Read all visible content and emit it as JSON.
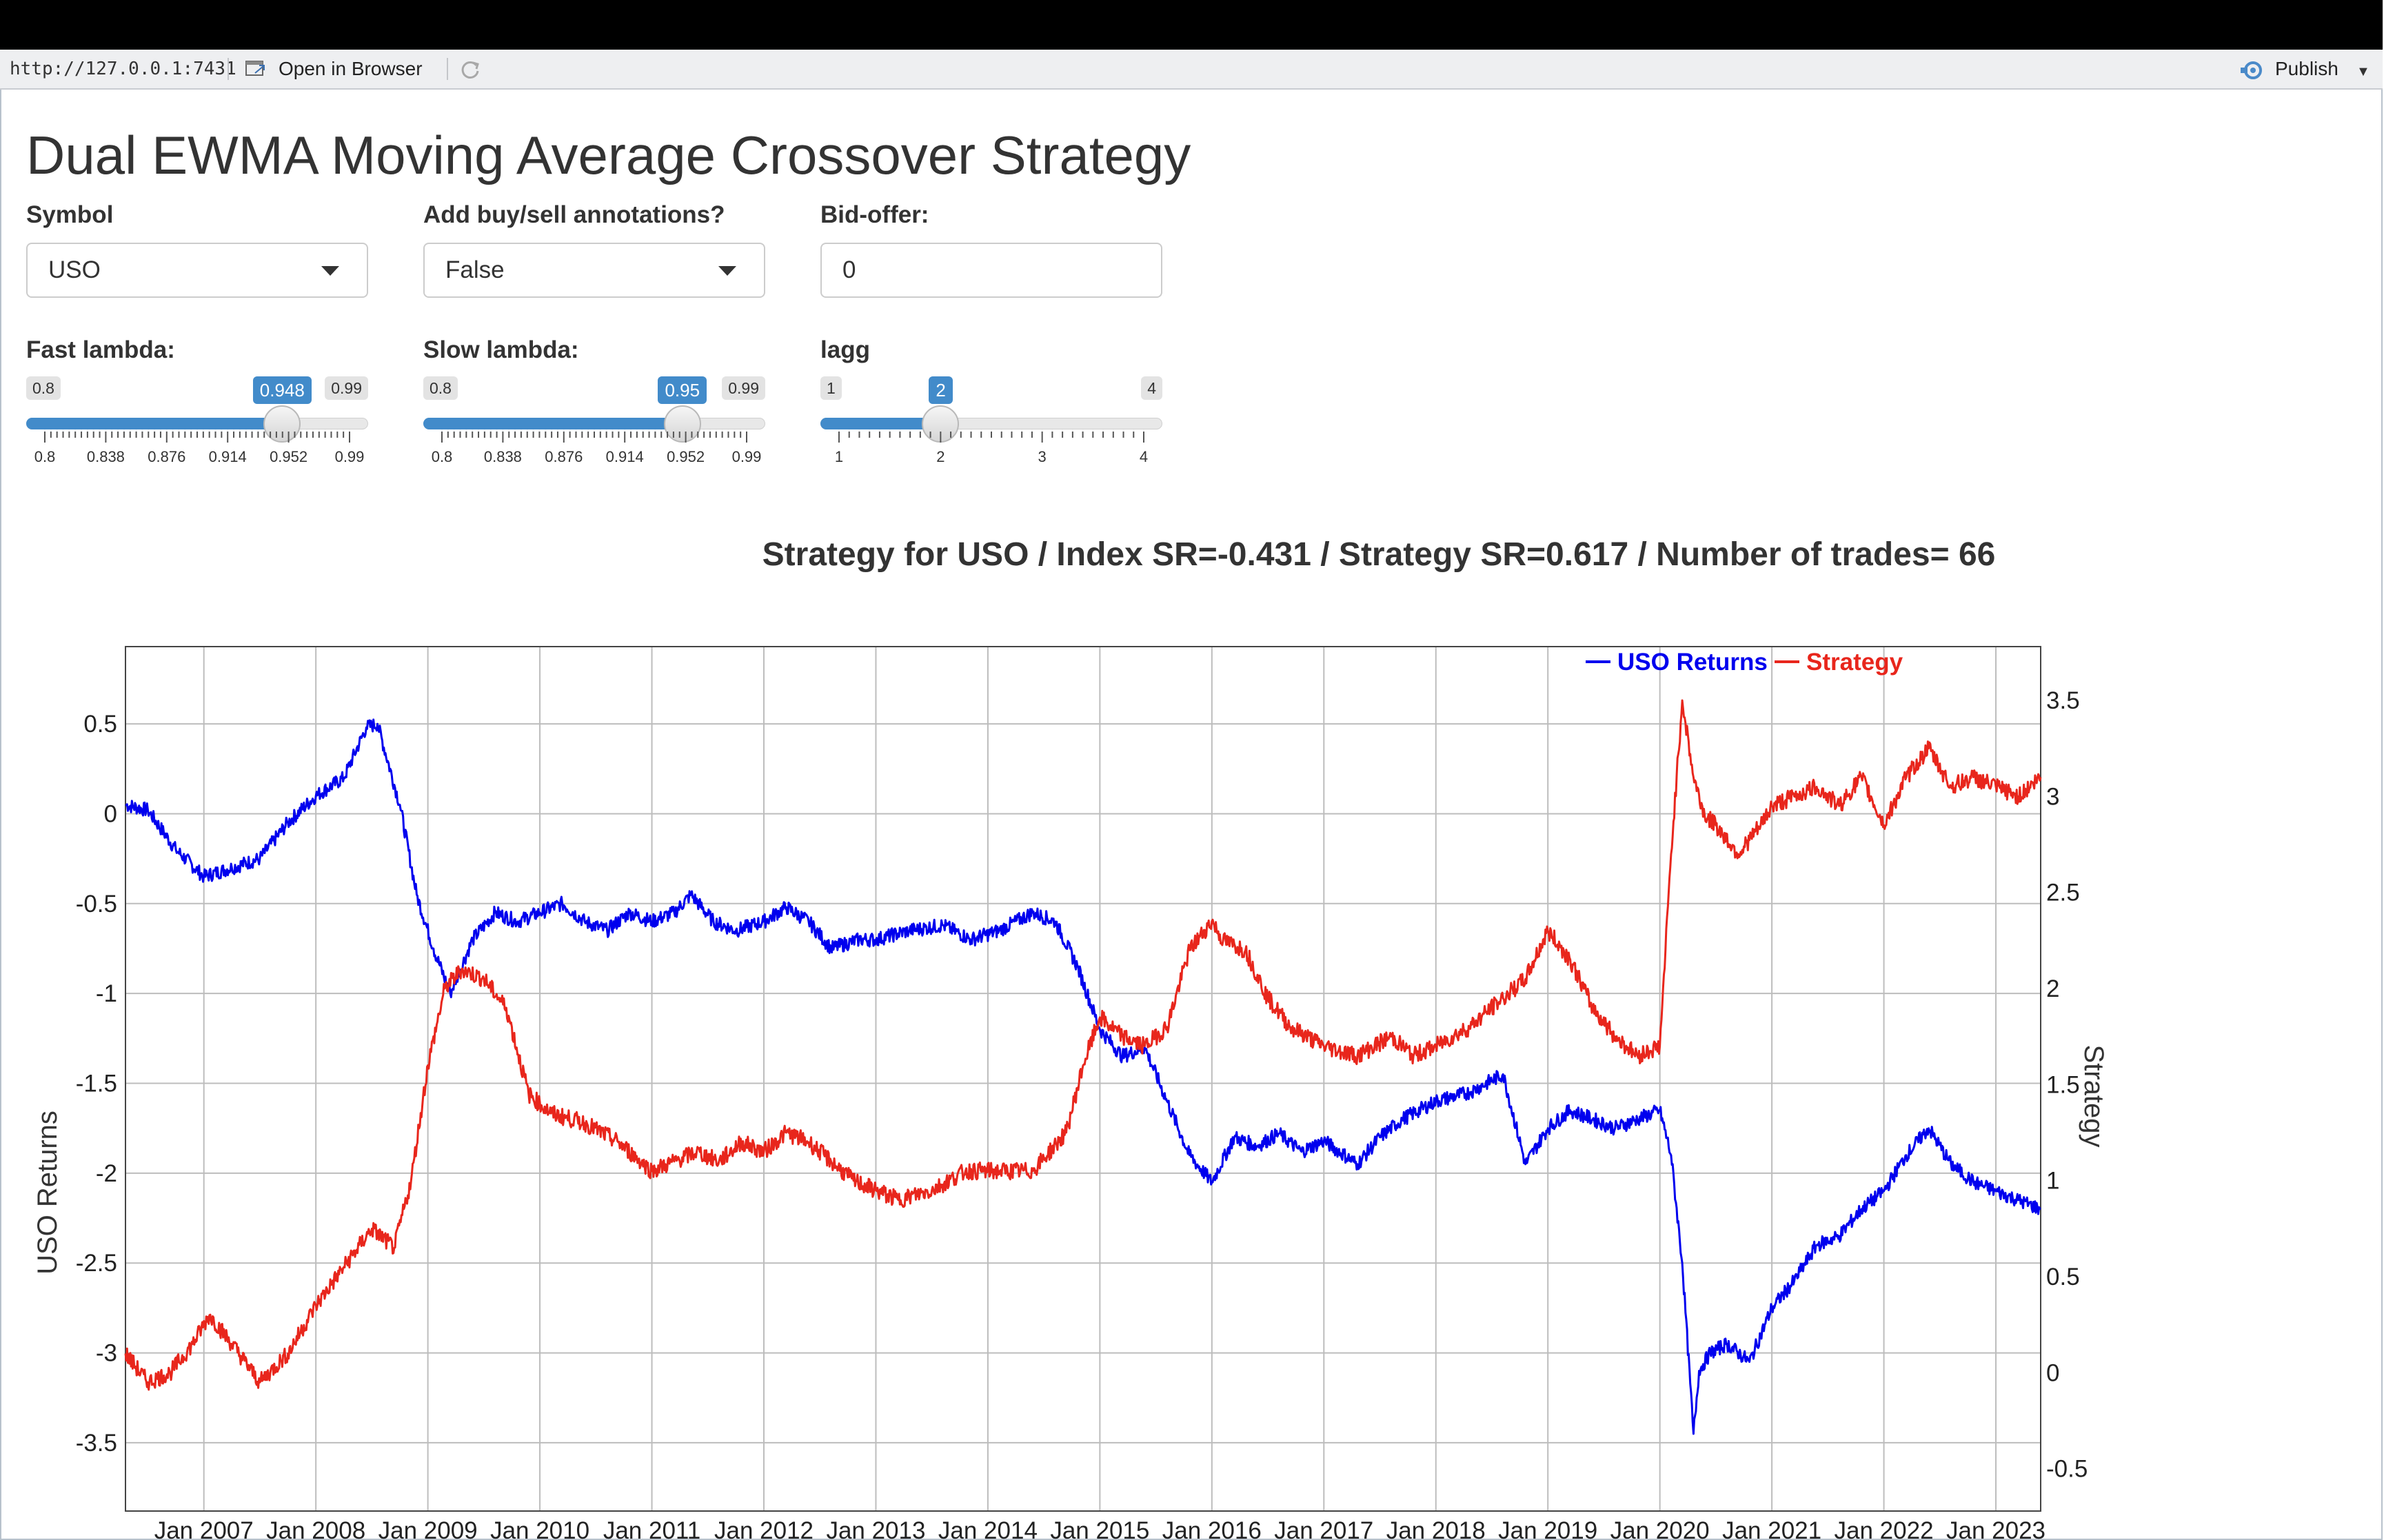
{
  "viewer": {
    "url": "http://127.0.0.1:7431",
    "open_in_browser": "Open in Browser",
    "publish": "Publish"
  },
  "app": {
    "title": "Dual EWMA Moving Average Crossover Strategy",
    "controls": {
      "symbol": {
        "label": "Symbol",
        "value": "USO"
      },
      "annotations": {
        "label": "Add buy/sell annotations?",
        "value": "False"
      },
      "bid_offer": {
        "label": "Bid-offer:",
        "value": "0"
      },
      "fast_lambda": {
        "label": "Fast lambda:",
        "min": "0.8",
        "max": "0.99",
        "value": 0.948,
        "value_label": "0.948",
        "ticks": [
          "0.8",
          "0.838",
          "0.876",
          "0.914",
          "0.952",
          "0.99"
        ]
      },
      "slow_lambda": {
        "label": "Slow lambda:",
        "min": "0.8",
        "max": "0.99",
        "value": 0.95,
        "value_label": "0.95",
        "ticks": [
          "0.8",
          "0.838",
          "0.876",
          "0.914",
          "0.952",
          "0.99"
        ]
      },
      "lagg": {
        "label": "lagg",
        "min": "1",
        "max": "4",
        "value": 2,
        "value_label": "2",
        "ticks": [
          "1",
          "2",
          "3",
          "4"
        ]
      }
    }
  },
  "chart_data": {
    "type": "line",
    "title": "Strategy for USO / Index SR=-0.431 / Strategy SR=0.617 / Number of trades= 66",
    "ylabel": "USO Returns",
    "y2label": "Strategy",
    "x_range": [
      2006.3,
      2023.4
    ],
    "x_ticks": [
      "Jan 2007",
      "Jan 2008",
      "Jan 2009",
      "Jan 2010",
      "Jan 2011",
      "Jan 2012",
      "Jan 2013",
      "Jan 2014",
      "Jan 2015",
      "Jan 2016",
      "Jan 2017",
      "Jan 2018",
      "Jan 2019",
      "Jan 2020",
      "Jan 2021",
      "Jan 2022",
      "Jan 2023"
    ],
    "y_range": [
      -3.88,
      0.93
    ],
    "y_ticks": [
      "0.5",
      "0",
      "-0.5",
      "-1",
      "-1.5",
      "-2",
      "-2.5",
      "-3",
      "-3.5"
    ],
    "y2_range": [
      -0.72,
      3.78
    ],
    "y2_ticks": [
      "3.5",
      "3",
      "2.5",
      "2",
      "1.5",
      "1",
      "0.5",
      "0",
      "-0.5"
    ],
    "grid": true,
    "legend_position": "top-right",
    "colors": {
      "uso": "#0000ee",
      "strategy": "#e8261c"
    },
    "series": [
      {
        "name": "USO Returns",
        "axis": "left",
        "color": "#0000ee",
        "x": [
          2006.3,
          2006.5,
          2006.75,
          2007.0,
          2007.25,
          2007.5,
          2007.75,
          2008.0,
          2008.25,
          2008.45,
          2008.55,
          2008.75,
          2008.9,
          2009.05,
          2009.2,
          2009.4,
          2009.6,
          2009.8,
          2010.0,
          2010.2,
          2010.4,
          2010.6,
          2010.8,
          2011.0,
          2011.2,
          2011.35,
          2011.55,
          2011.75,
          2012.0,
          2012.2,
          2012.4,
          2012.6,
          2012.85,
          2013.0,
          2013.3,
          2013.6,
          2013.85,
          2014.1,
          2014.4,
          2014.6,
          2014.8,
          2015.0,
          2015.2,
          2015.4,
          2015.6,
          2015.8,
          2016.0,
          2016.2,
          2016.4,
          2016.6,
          2016.8,
          2017.0,
          2017.3,
          2017.5,
          2017.7,
          2018.0,
          2018.3,
          2018.6,
          2018.8,
          2019.0,
          2019.2,
          2019.4,
          2019.6,
          2019.8,
          2020.0,
          2020.1,
          2020.2,
          2020.3,
          2020.35,
          2020.45,
          2020.6,
          2020.8,
          2021.0,
          2021.2,
          2021.4,
          2021.6,
          2021.8,
          2022.0,
          2022.2,
          2022.4,
          2022.6,
          2022.8,
          2023.0,
          2023.2,
          2023.4
        ],
        "y": [
          0.05,
          0.02,
          -0.2,
          -0.35,
          -0.3,
          -0.25,
          -0.05,
          0.1,
          0.2,
          0.48,
          0.5,
          0.05,
          -0.45,
          -0.75,
          -1.0,
          -0.7,
          -0.55,
          -0.6,
          -0.55,
          -0.5,
          -0.6,
          -0.65,
          -0.55,
          -0.6,
          -0.55,
          -0.45,
          -0.6,
          -0.65,
          -0.6,
          -0.52,
          -0.6,
          -0.75,
          -0.7,
          -0.7,
          -0.65,
          -0.62,
          -0.7,
          -0.65,
          -0.55,
          -0.6,
          -0.85,
          -1.2,
          -1.35,
          -1.3,
          -1.6,
          -1.9,
          -2.05,
          -1.8,
          -1.85,
          -1.78,
          -1.88,
          -1.82,
          -1.95,
          -1.8,
          -1.7,
          -1.6,
          -1.55,
          -1.45,
          -1.95,
          -1.75,
          -1.65,
          -1.7,
          -1.75,
          -1.7,
          -1.65,
          -1.9,
          -2.5,
          -3.45,
          -3.1,
          -3.0,
          -2.95,
          -3.05,
          -2.75,
          -2.6,
          -2.4,
          -2.35,
          -2.2,
          -2.1,
          -1.9,
          -1.75,
          -1.95,
          -2.05,
          -2.1,
          -2.15,
          -2.2
        ]
      },
      {
        "name": "Strategy",
        "axis": "right",
        "color": "#e8261c",
        "x": [
          2006.3,
          2006.5,
          2006.7,
          2006.9,
          2007.05,
          2007.25,
          2007.5,
          2007.75,
          2008.0,
          2008.25,
          2008.5,
          2008.7,
          2008.85,
          2009.0,
          2009.15,
          2009.3,
          2009.5,
          2009.7,
          2009.9,
          2010.1,
          2010.4,
          2010.7,
          2011.0,
          2011.2,
          2011.4,
          2011.6,
          2011.8,
          2012.0,
          2012.2,
          2012.4,
          2012.6,
          2012.8,
          2013.0,
          2013.2,
          2013.5,
          2013.8,
          2014.1,
          2014.4,
          2014.7,
          2014.85,
          2015.0,
          2015.2,
          2015.4,
          2015.6,
          2015.8,
          2016.0,
          2016.1,
          2016.3,
          2016.5,
          2016.7,
          2017.0,
          2017.3,
          2017.6,
          2017.8,
          2018.0,
          2018.3,
          2018.6,
          2018.8,
          2019.0,
          2019.2,
          2019.4,
          2019.6,
          2019.8,
          2020.0,
          2020.1,
          2020.2,
          2020.3,
          2020.4,
          2020.5,
          2020.7,
          2020.9,
          2021.0,
          2021.2,
          2021.4,
          2021.6,
          2021.8,
          2022.0,
          2022.2,
          2022.4,
          2022.6,
          2022.8,
          2023.0,
          2023.2,
          2023.4
        ],
        "y": [
          0.1,
          -0.05,
          0.0,
          0.15,
          0.3,
          0.15,
          -0.05,
          0.1,
          0.35,
          0.55,
          0.75,
          0.65,
          1.0,
          1.6,
          2.0,
          2.1,
          2.05,
          1.9,
          1.45,
          1.35,
          1.3,
          1.2,
          1.05,
          1.1,
          1.15,
          1.1,
          1.2,
          1.15,
          1.25,
          1.2,
          1.1,
          1.0,
          0.95,
          0.9,
          0.95,
          1.05,
          1.05,
          1.05,
          1.25,
          1.6,
          1.85,
          1.75,
          1.7,
          1.8,
          2.2,
          2.35,
          2.25,
          2.2,
          1.95,
          1.8,
          1.7,
          1.65,
          1.75,
          1.65,
          1.7,
          1.8,
          1.95,
          2.05,
          2.3,
          2.15,
          1.9,
          1.75,
          1.65,
          1.7,
          2.7,
          3.5,
          3.1,
          2.9,
          2.85,
          2.7,
          2.85,
          2.95,
          3.0,
          3.05,
          2.95,
          3.1,
          2.85,
          3.1,
          3.25,
          3.05,
          3.1,
          3.05,
          3.0,
          3.1
        ]
      }
    ]
  }
}
